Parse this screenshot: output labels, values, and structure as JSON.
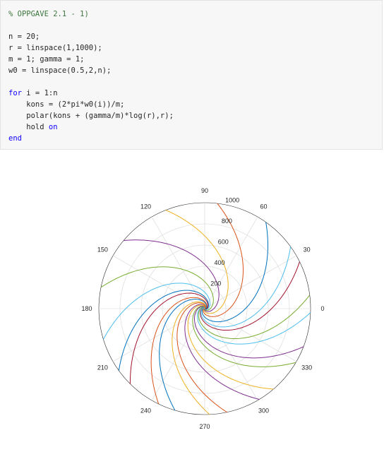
{
  "code": {
    "lines": [
      {
        "segments": [
          {
            "t": "% OPPGAVE 2.1 - 1)",
            "c": "cm"
          }
        ]
      },
      {
        "segments": []
      },
      {
        "segments": [
          {
            "t": "n = 20;",
            "c": ""
          }
        ]
      },
      {
        "segments": [
          {
            "t": "r = linspace(1,1000);",
            "c": ""
          }
        ]
      },
      {
        "segments": [
          {
            "t": "m = 1; gamma = 1;",
            "c": ""
          }
        ]
      },
      {
        "segments": [
          {
            "t": "w0 = linspace(0.5,2,n);",
            "c": ""
          }
        ]
      },
      {
        "segments": []
      },
      {
        "segments": [
          {
            "t": "for",
            "c": "kw"
          },
          {
            "t": " i = 1:n",
            "c": ""
          }
        ]
      },
      {
        "segments": [
          {
            "t": "    kons = (2*pi*w0(i))/m;",
            "c": ""
          }
        ]
      },
      {
        "segments": [
          {
            "t": "    polar(kons + (gamma/m)*log(r),r);",
            "c": ""
          }
        ]
      },
      {
        "segments": [
          {
            "t": "    hold ",
            "c": ""
          },
          {
            "t": "on",
            "c": "kw"
          }
        ]
      },
      {
        "segments": [
          {
            "t": "end",
            "c": "kw"
          }
        ]
      }
    ]
  },
  "chart_data": {
    "type": "polar-line",
    "angle_ticks": [
      "0",
      "30",
      "60",
      "90",
      "120",
      "150",
      "180",
      "210",
      "240",
      "270",
      "300",
      "330"
    ],
    "radius_ticks": [
      "200",
      "400",
      "600",
      "800",
      "1000"
    ],
    "rlim": [
      0,
      1000
    ],
    "curve_count": 20,
    "n": 20,
    "m": 1,
    "gamma": 1,
    "w0_range": [
      0.5,
      2
    ],
    "r_range": [
      1,
      1000
    ],
    "grid": true,
    "colors": [
      "#0072bd",
      "#d95319",
      "#edb120",
      "#7e2f8e",
      "#77ac30",
      "#4dbeee",
      "#a2142f"
    ],
    "grid_color": "#e0e0e0",
    "outer_circle_color": "#262626"
  }
}
